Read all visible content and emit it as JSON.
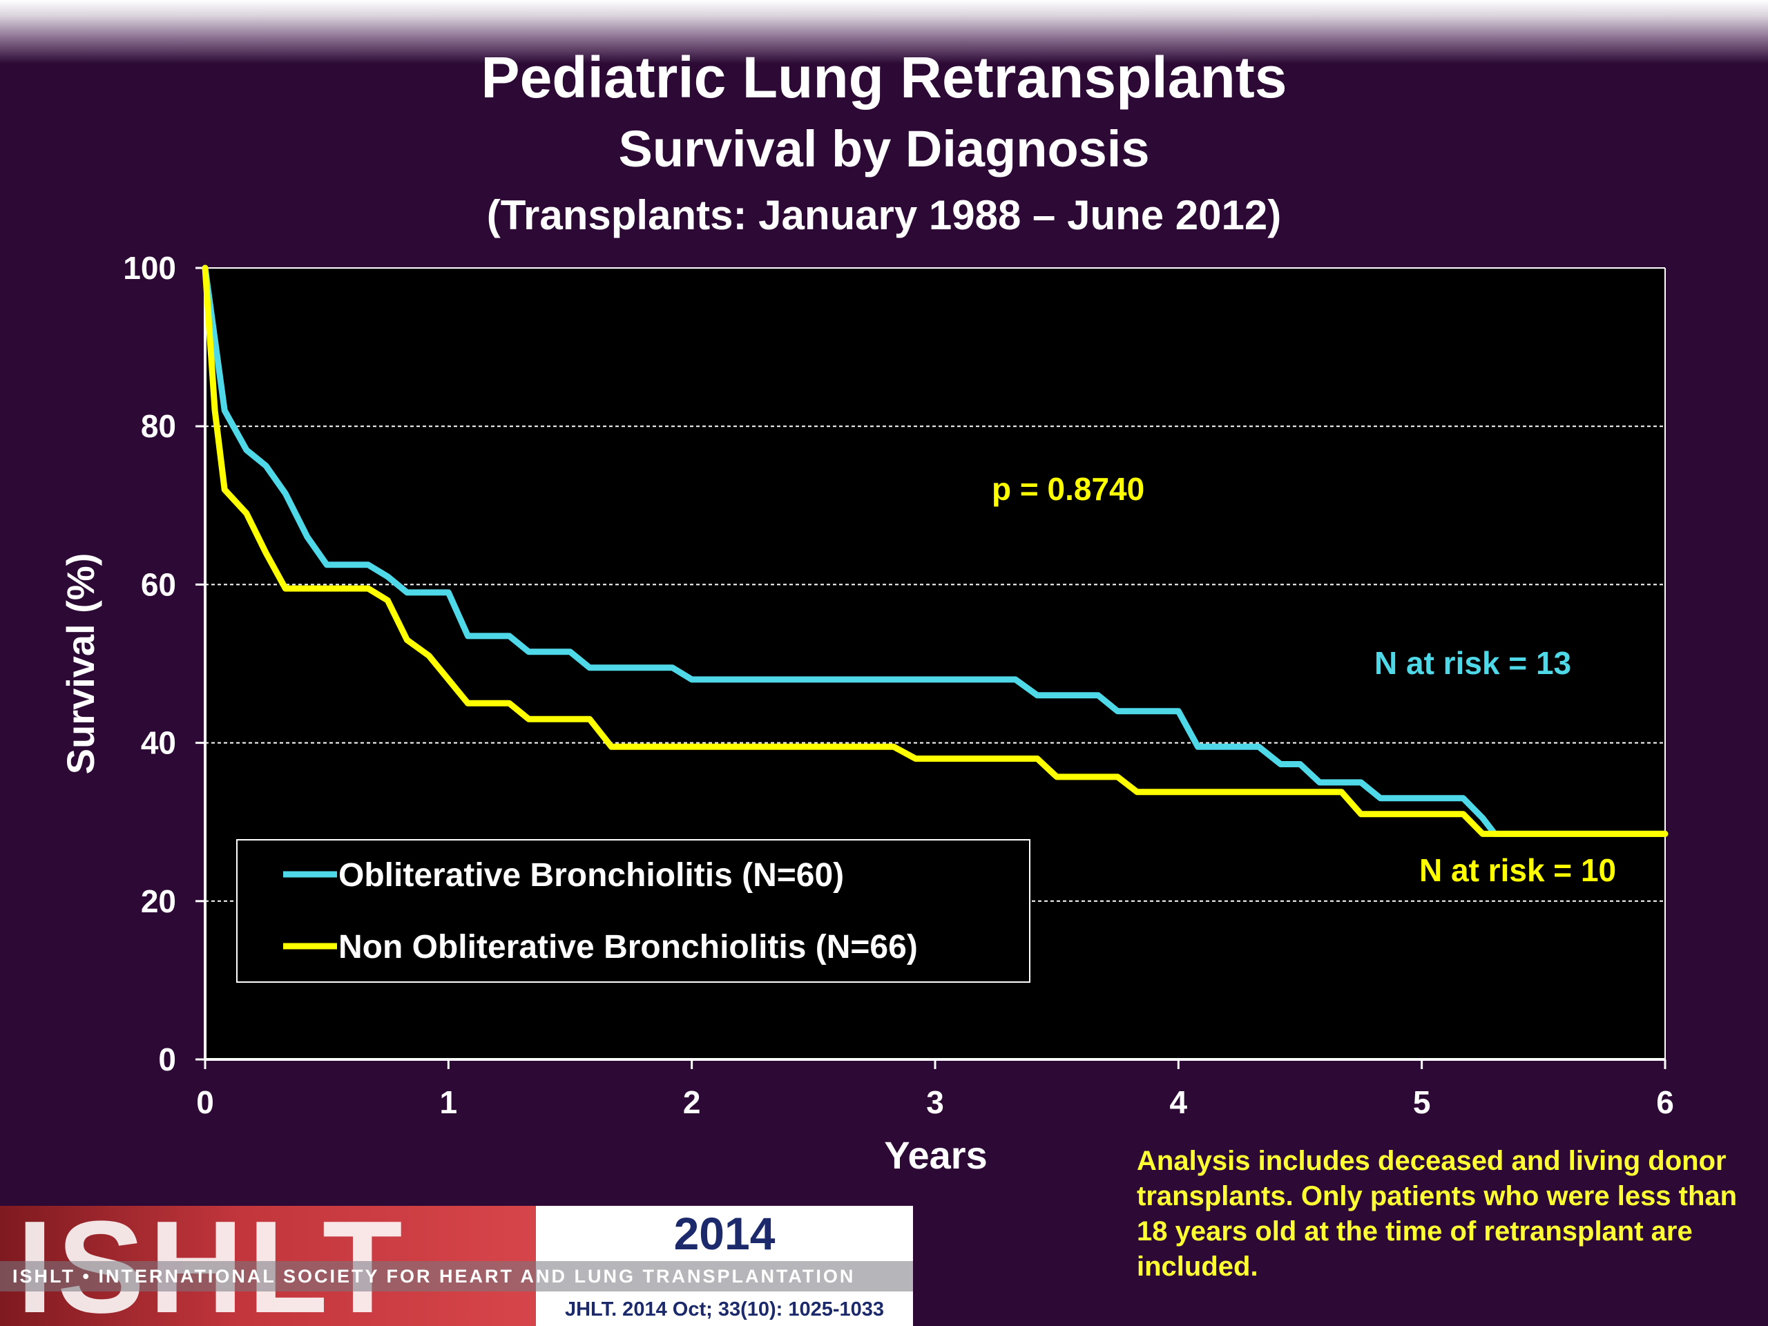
{
  "header": {
    "title": "Pediatric Lung Retransplants",
    "subtitle": "Survival by Diagnosis",
    "subtitle2": "(Transplants: January 1988 – June 2012)"
  },
  "chart_data": {
    "type": "line",
    "xlabel": "Years",
    "ylabel": "Survival (%)",
    "xlim": [
      0,
      6
    ],
    "ylim": [
      0,
      100
    ],
    "x_ticks": [
      "0",
      "1",
      "2",
      "3",
      "4",
      "5",
      "6"
    ],
    "y_ticks": [
      "0",
      "20",
      "40",
      "60",
      "80",
      "100"
    ],
    "grid": "horizontal dashed",
    "plot_background": "#000000",
    "series": [
      {
        "name": "Obliterative Bronchiolitis (N=60)",
        "color": "#4fd8e8",
        "x": [
          0,
          0.08,
          0.17,
          0.25,
          0.33,
          0.42,
          0.5,
          0.67,
          0.75,
          0.83,
          1.0,
          1.08,
          1.25,
          1.33,
          1.5,
          1.58,
          1.92,
          2.0,
          3.33,
          3.42,
          3.67,
          3.75,
          4.0,
          4.08,
          4.33,
          4.42,
          4.5,
          4.58,
          4.75,
          4.83,
          5.17,
          5.25,
          5.3,
          6.0
        ],
        "y": [
          100,
          82,
          77,
          75,
          71.5,
          66,
          62.5,
          62.5,
          61,
          59,
          59,
          53.5,
          53.5,
          51.5,
          51.5,
          49.5,
          49.5,
          48,
          48,
          46,
          46,
          44,
          44,
          39.5,
          39.5,
          37.3,
          37.3,
          35,
          35,
          33,
          33,
          30.5,
          28.5,
          28.5
        ]
      },
      {
        "name": "Non Obliterative Bronchiolitis (N=66)",
        "color": "#ffff00",
        "x": [
          0,
          0.04,
          0.08,
          0.17,
          0.25,
          0.33,
          0.67,
          0.75,
          0.83,
          0.92,
          1.0,
          1.08,
          1.25,
          1.33,
          1.58,
          1.67,
          2.83,
          2.92,
          3.42,
          3.5,
          3.75,
          3.83,
          4.67,
          4.75,
          5.17,
          5.25,
          6.0
        ],
        "y": [
          100,
          82,
          72,
          69,
          64,
          59.5,
          59.5,
          58,
          53,
          51,
          48,
          45,
          45,
          43,
          43,
          39.5,
          39.5,
          38,
          38,
          35.7,
          35.7,
          33.8,
          33.8,
          31,
          31,
          28.5,
          28.5
        ]
      }
    ],
    "annotations": [
      {
        "text": "p = 0.8740",
        "color": "#ffff00"
      },
      {
        "text": "N at risk = 13",
        "color": "#4fd8e8"
      },
      {
        "text": "N at risk = 10",
        "color": "#ffff00"
      }
    ],
    "legend_position": "bottom-left"
  },
  "footnote": "Analysis includes deceased and living donor transplants. Only patients who were less than 18 years old at the time of retransplant are included.",
  "logo": {
    "mark": "ISHLT",
    "year": "2014",
    "org": "ISHLT • INTERNATIONAL SOCIETY FOR HEART AND LUNG TRANSPLANTATION",
    "citation": "JHLT. 2014 Oct; 33(10): 1025-1033"
  }
}
